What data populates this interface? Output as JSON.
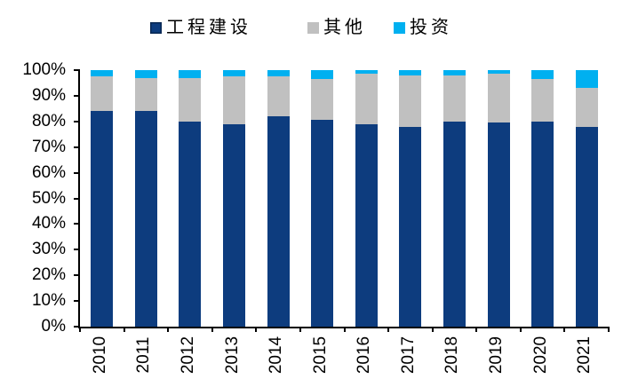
{
  "chart_data": {
    "type": "bar",
    "stacked": true,
    "percent_stacked": true,
    "title": "",
    "xlabel": "",
    "ylabel": "",
    "ylim": [
      0,
      100
    ],
    "grid": false,
    "legend_position": "top",
    "categories": [
      "2010",
      "2011",
      "2012",
      "2013",
      "2014",
      "2015",
      "2016",
      "2017",
      "2018",
      "2019",
      "2020",
      "2021"
    ],
    "series": [
      {
        "name": "工程建设",
        "color": "#0d3c7e",
        "values": [
          84,
          84,
          80,
          79,
          82,
          80.5,
          79,
          78,
          80,
          79.5,
          80,
          78
        ]
      },
      {
        "name": "其他",
        "color": "#c0c0c0",
        "values": [
          13.5,
          13,
          17,
          18.5,
          15.5,
          16,
          19.5,
          20,
          18,
          19,
          16.5,
          15
        ]
      },
      {
        "name": "投资",
        "color": "#00b0f0",
        "values": [
          2.5,
          3,
          3,
          2.5,
          2.5,
          3.5,
          1.5,
          2,
          2,
          1.5,
          3.5,
          7
        ]
      }
    ],
    "ytick_labels": [
      "0%",
      "10%",
      "20%",
      "30%",
      "40%",
      "50%",
      "60%",
      "70%",
      "80%",
      "90%",
      "100%"
    ]
  },
  "colors": {
    "background": "#ffffff",
    "axis": "#000000",
    "text": "#000000"
  }
}
